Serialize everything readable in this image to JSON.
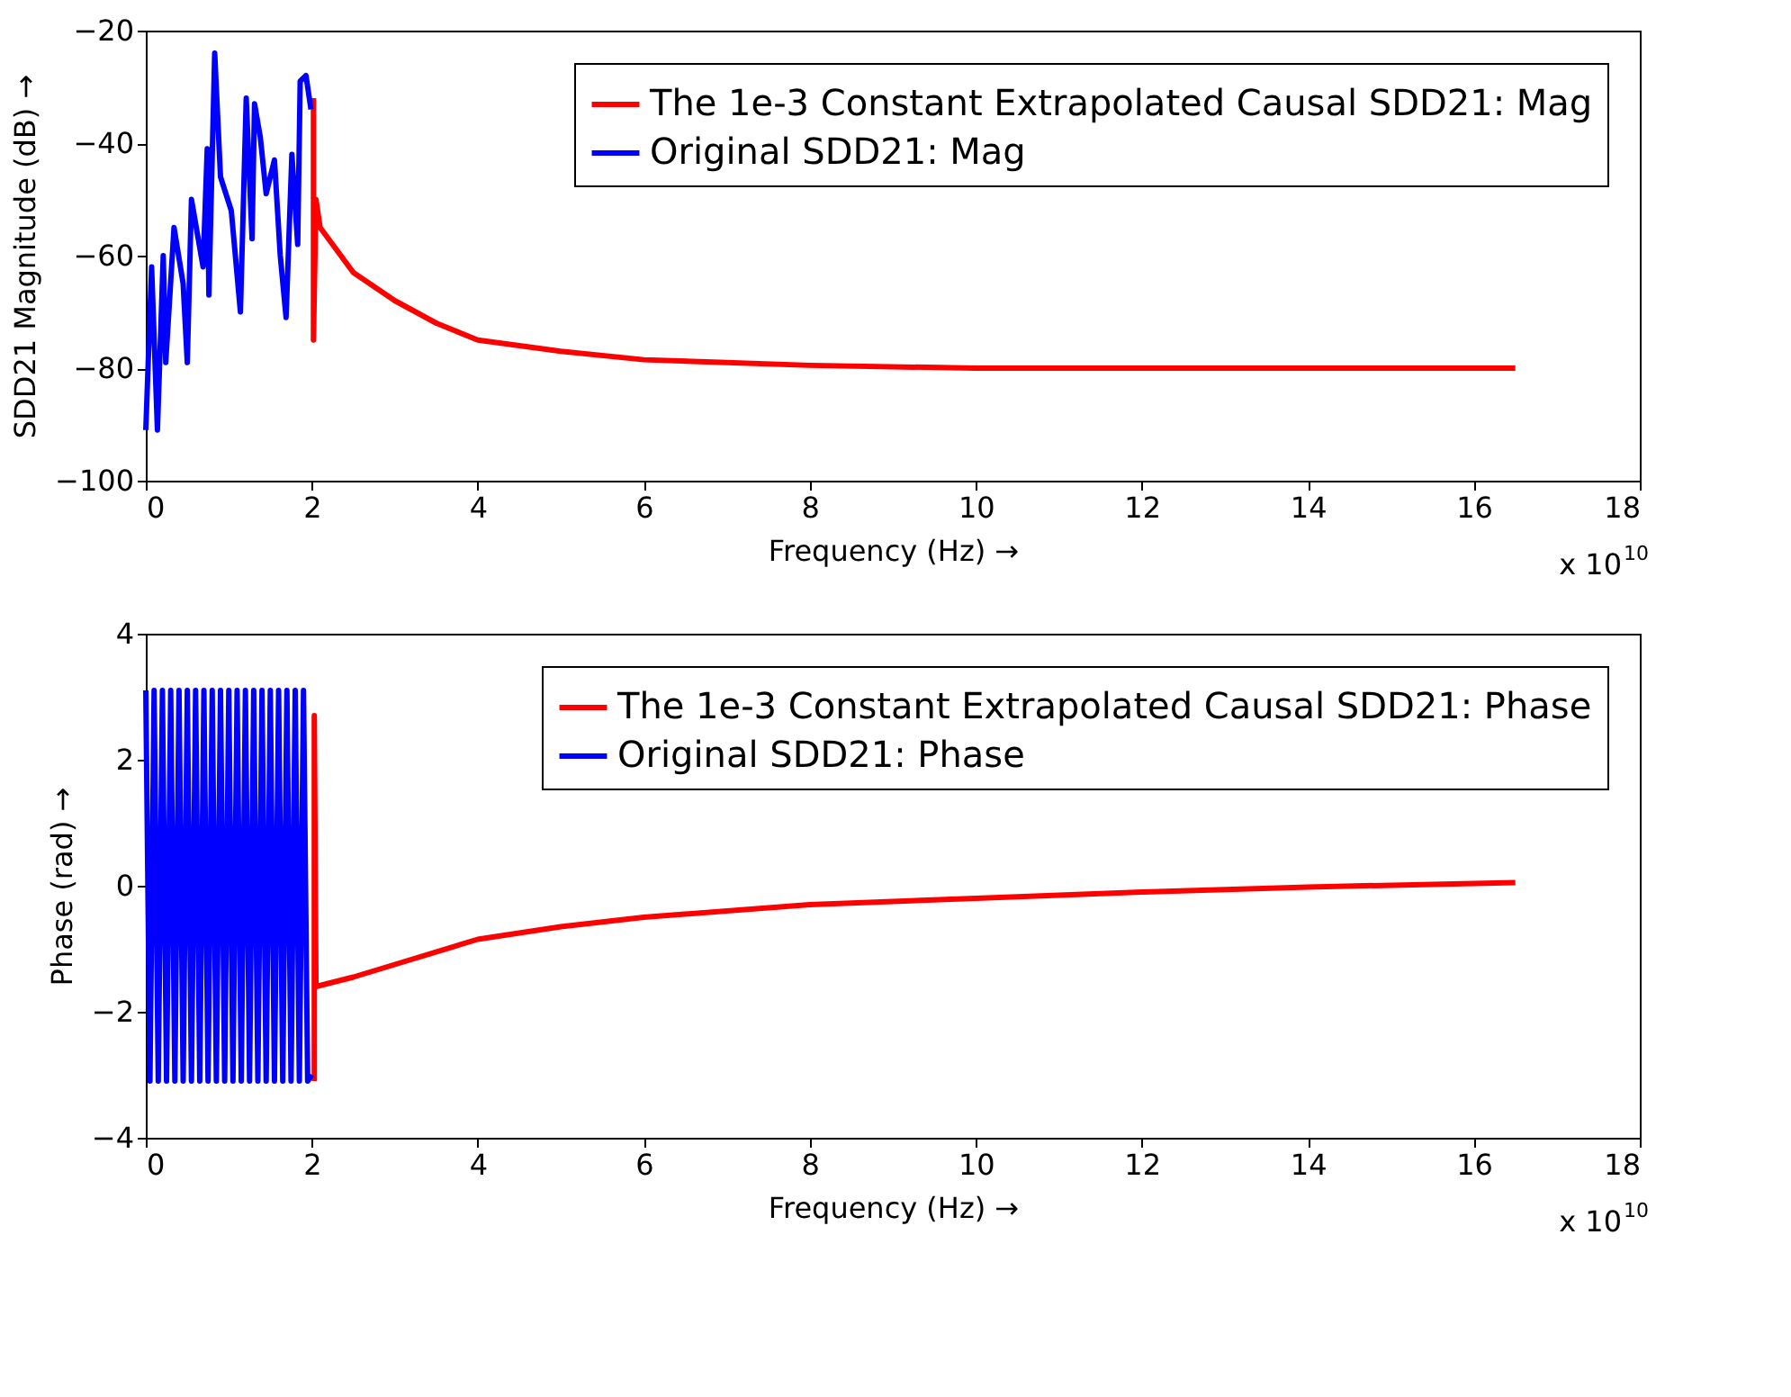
{
  "chart_data": [
    {
      "type": "line",
      "xlabel": "Frequency (Hz) →",
      "ylabel": "SDD21 Magnitude (dB) →",
      "xlim": [
        0,
        18
      ],
      "xticks": [
        0,
        2,
        4,
        6,
        8,
        10,
        12,
        14,
        16,
        18
      ],
      "ylim": [
        -100,
        -20
      ],
      "yticks": [
        -100,
        -80,
        -60,
        -40,
        -20
      ],
      "legend": "top right",
      "grid": false,
      "line_style": "solid",
      "annotations": [
        "x 10$^{10}$"
      ],
      "series": [
        {
          "name": "The 1e-3 Constant Extrapolated Causal SDD21: Mag",
          "color": "#ff0000",
          "x": [
            2.02,
            2.02,
            2.05,
            2.1,
            2.3,
            2.5,
            3,
            3.5,
            4,
            5,
            6,
            7,
            8,
            10,
            12,
            14,
            16.5
          ],
          "values": [
            -32,
            -75,
            -50,
            -55,
            -59,
            -63,
            -68,
            -72,
            -75,
            -77,
            -78.5,
            -79,
            -79.5,
            -80,
            -80,
            -80,
            -80
          ]
        },
        {
          "name": "Original SDD21: Mag",
          "color": "#0000ff",
          "x": [
            0,
            0.07,
            0.14,
            0.21,
            0.24,
            0.34,
            0.45,
            0.5,
            0.55,
            0.69,
            0.74,
            0.76,
            0.83,
            0.9,
            1.03,
            1.14,
            1.21,
            1.28,
            1.31,
            1.38,
            1.45,
            1.55,
            1.62,
            1.69,
            1.76,
            1.83,
            1.86,
            1.93,
            1.99
          ],
          "values": [
            -91,
            -62,
            -91,
            -60,
            -79,
            -55,
            -65,
            -79,
            -50,
            -62,
            -41,
            -67,
            -24,
            -46,
            -52,
            -70,
            -32,
            -57,
            -33,
            -39,
            -49,
            -43,
            -60,
            -71,
            -42,
            -58,
            -29,
            -28,
            -34
          ]
        }
      ]
    },
    {
      "type": "line",
      "xlabel": "Frequency (Hz) →",
      "ylabel": "Phase (rad) →",
      "xlim": [
        0,
        18
      ],
      "xticks": [
        0,
        2,
        4,
        6,
        8,
        10,
        12,
        14,
        16,
        18
      ],
      "ylim": [
        -4,
        4
      ],
      "yticks": [
        -4,
        -2,
        0,
        2,
        4
      ],
      "legend": "top right",
      "grid": false,
      "line_style": "solid",
      "annotations": [
        "x 10$^{10}$"
      ],
      "series": [
        {
          "name": "The 1e-3 Constant Extrapolated Causal SDD21: Phase",
          "color": "#ff0000",
          "x": [
            2.03,
            2.03,
            2.05,
            2.5,
            3,
            4,
            5,
            6,
            8,
            10,
            12,
            14,
            16.5
          ],
          "values": [
            -3.1,
            2.7,
            -1.6,
            -1.45,
            -1.25,
            -0.85,
            -0.65,
            -0.5,
            -0.3,
            -0.2,
            -0.1,
            -0.02,
            0.05
          ]
        },
        {
          "name": "Original SDD21: Phase",
          "color": "#0000ff",
          "x": [
            0,
            0.05,
            0.1,
            0.15,
            0.2,
            0.25,
            0.3,
            0.35,
            0.4,
            0.45,
            0.5,
            0.55,
            0.6,
            0.65,
            0.7,
            0.75,
            0.8,
            0.85,
            0.9,
            0.95,
            1.0,
            1.05,
            1.1,
            1.15,
            1.2,
            1.25,
            1.3,
            1.35,
            1.4,
            1.45,
            1.5,
            1.55,
            1.6,
            1.65,
            1.7,
            1.75,
            1.8,
            1.85,
            1.9,
            1.95,
            2.0
          ],
          "values": [
            3.1,
            -3.1,
            3.1,
            -3.1,
            3.1,
            -3.1,
            3.1,
            -3.1,
            3.1,
            -3.1,
            3.1,
            -3.1,
            3.1,
            -3.1,
            3.1,
            -3.1,
            3.1,
            -3.1,
            3.1,
            -3.1,
            3.1,
            -3.1,
            3.1,
            -3.1,
            3.1,
            -3.1,
            3.1,
            -3.1,
            3.1,
            -3.1,
            3.1,
            -3.1,
            3.1,
            -3.1,
            3.1,
            -3.1,
            3.1,
            -3.1,
            3.1,
            -3.1,
            -3.0
          ]
        }
      ]
    }
  ]
}
